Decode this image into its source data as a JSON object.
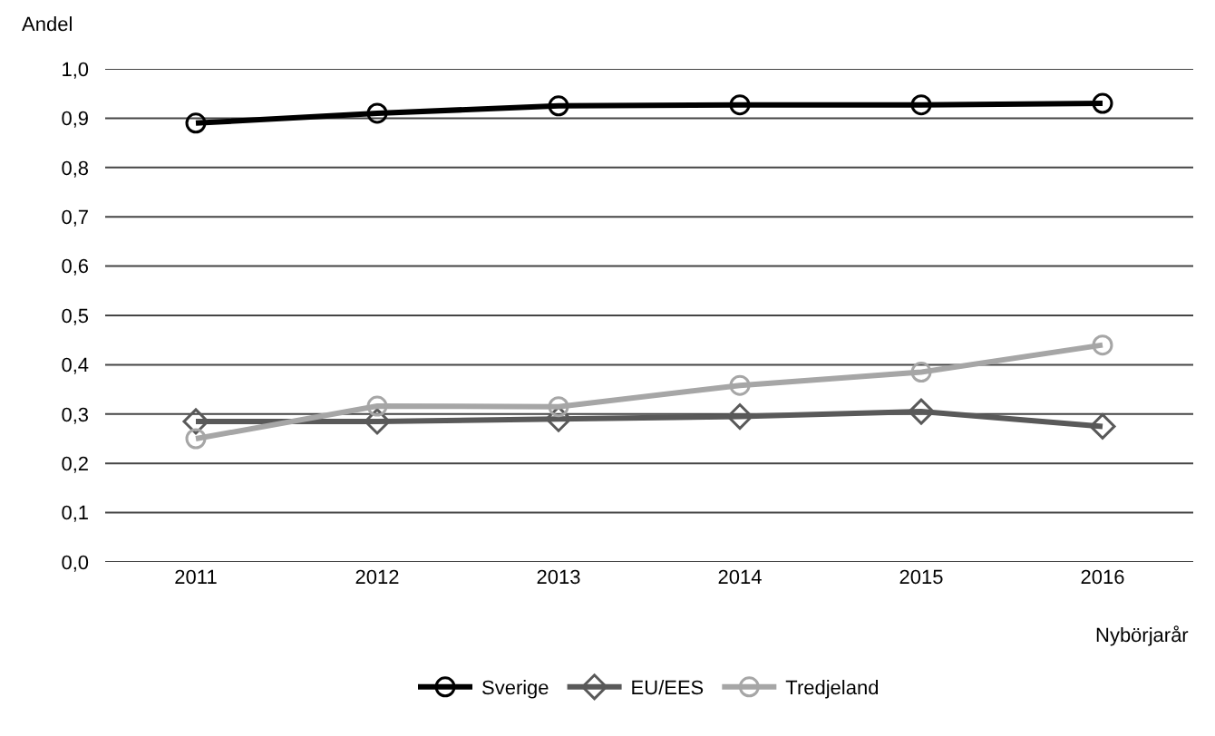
{
  "chart_data": {
    "type": "line",
    "xlabel": "Nybörjarår",
    "ylabel": "Andel",
    "categories": [
      "2011",
      "2012",
      "2013",
      "2014",
      "2015",
      "2016"
    ],
    "series": [
      {
        "name": "Sverige",
        "color": "#000000",
        "marker": "circle",
        "values": [
          0.89,
          0.91,
          0.925,
          0.927,
          0.927,
          0.93
        ]
      },
      {
        "name": "EU/EES",
        "color": "#595959",
        "marker": "diamond",
        "values": [
          0.285,
          0.285,
          0.29,
          0.295,
          0.305,
          0.275
        ]
      },
      {
        "name": "Tredjeland",
        "color": "#a6a6a6",
        "marker": "circle",
        "values": [
          0.25,
          0.316,
          0.315,
          0.358,
          0.385,
          0.44
        ]
      }
    ],
    "ylim": [
      0,
      1
    ],
    "yticks": [
      {
        "value": 0,
        "label": "0,0"
      },
      {
        "value": 0.1,
        "label": "0,1"
      },
      {
        "value": 0.2,
        "label": "0,2"
      },
      {
        "value": 0.3,
        "label": "0,3"
      },
      {
        "value": 0.4,
        "label": "0,4"
      },
      {
        "value": 0.5,
        "label": "0,5"
      },
      {
        "value": 0.6,
        "label": "0,6"
      },
      {
        "value": 0.7,
        "label": "0,7"
      },
      {
        "value": 0.8,
        "label": "0,8"
      },
      {
        "value": 0.9,
        "label": "0,9"
      },
      {
        "value": 1,
        "label": "1,0"
      }
    ],
    "grid": "y",
    "legend": "bottom",
    "line_style": "solid"
  }
}
